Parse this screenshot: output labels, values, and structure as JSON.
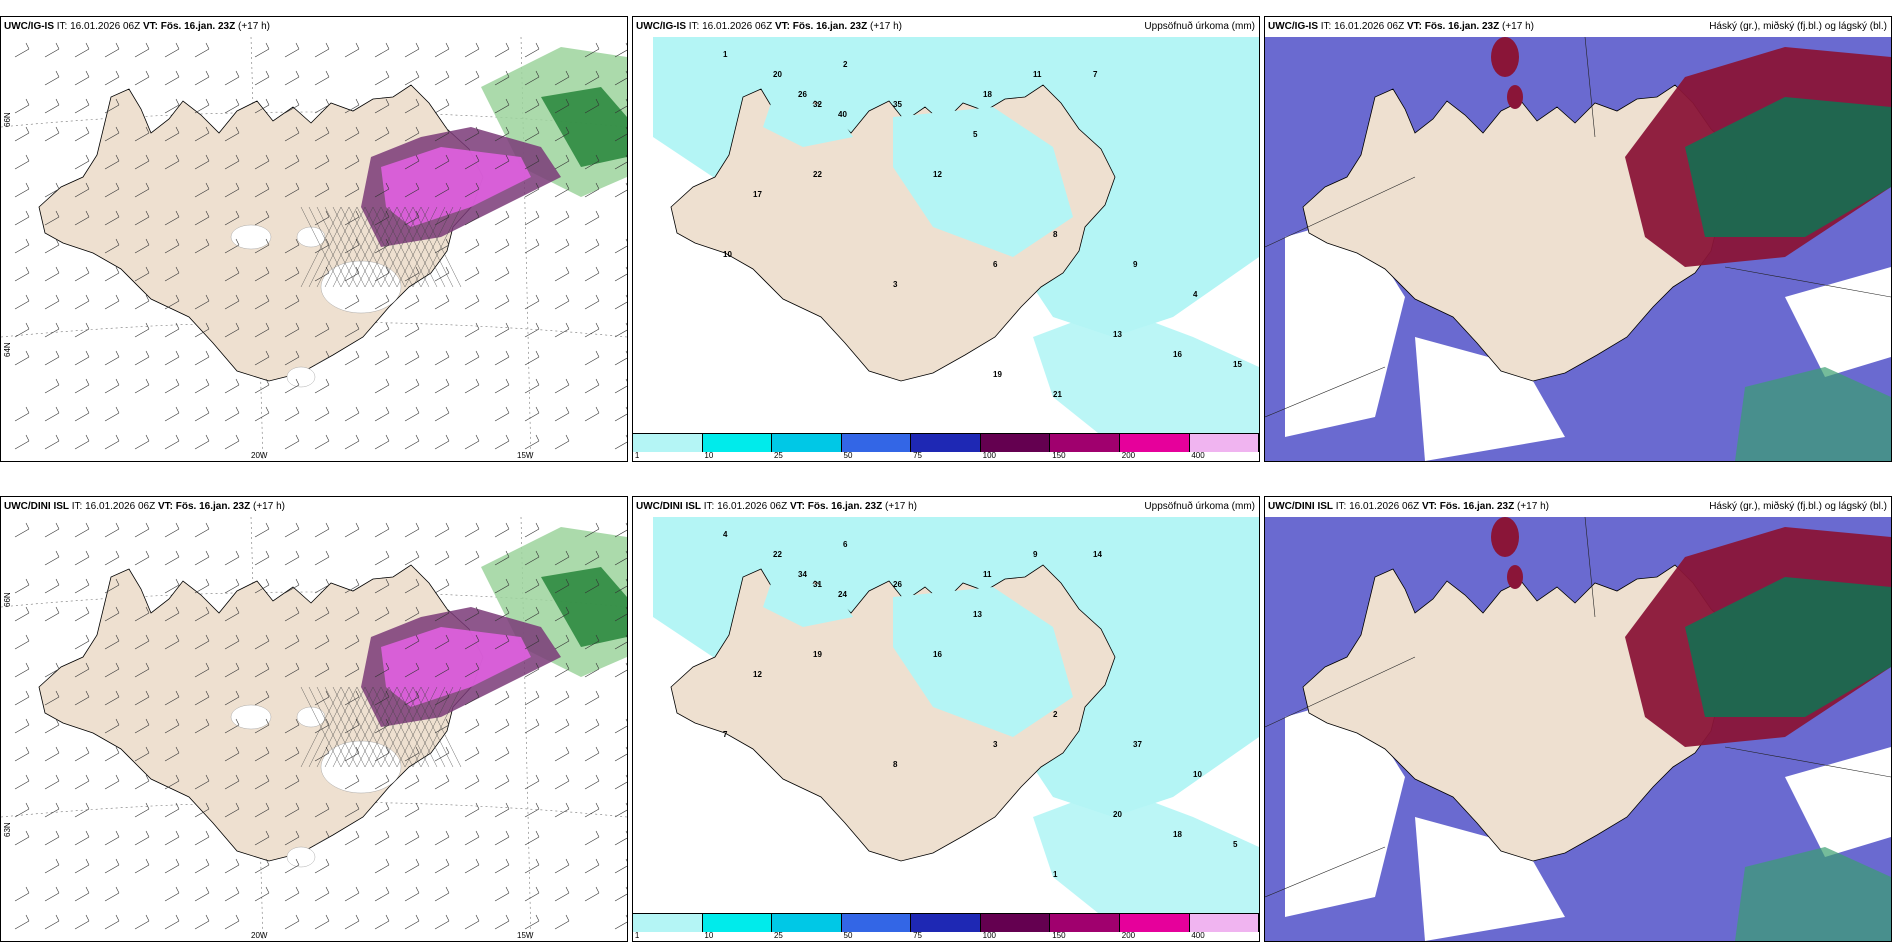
{
  "rows": [
    {
      "model": "UWC/IG-IS",
      "panels": [
        {
          "it_label": "IT:",
          "it_value": "16.01.2026 06Z",
          "vt_label": "VT:",
          "vt_value": "Fös. 16.jan. 23Z",
          "lead": "(+17 h)",
          "right": ""
        },
        {
          "it_label": "IT:",
          "it_value": "16.01.2026 06Z",
          "vt_label": "VT:",
          "vt_value": "Fös. 16.jan. 23Z",
          "lead": "(+17 h)",
          "right": "Uppsöfnuð úrkoma (mm)"
        },
        {
          "it_label": "IT:",
          "it_value": "16.01.2026 06Z",
          "vt_label": "VT:",
          "vt_value": "Fös. 16.jan. 23Z",
          "lead": "(+17 h)",
          "right": "Háský (gr.), miðský (fj.bl.) og lágský (bl.)"
        }
      ]
    },
    {
      "model": "UWC/DINI ISL",
      "panels": [
        {
          "it_label": "IT:",
          "it_value": "16.01.2026 06Z",
          "vt_label": "VT:",
          "vt_value": "Fös. 16.jan. 23Z",
          "lead": "(+17 h)",
          "right": ""
        },
        {
          "it_label": "IT:",
          "it_value": "16.01.2026 06Z",
          "vt_label": "VT:",
          "vt_value": "Fös. 16.jan. 23Z",
          "lead": "(+17 h)",
          "right": "Uppsöfnuð úrkoma (mm)"
        },
        {
          "it_label": "IT:",
          "it_value": "16.01.2026 06Z",
          "vt_label": "VT:",
          "vt_value": "Fös. 16.jan. 23Z",
          "lead": "(+17 h)",
          "right": "Háský (gr.), miðský (fj.bl.) og lágský (bl.)"
        }
      ]
    }
  ],
  "axes": {
    "lat_66": "66N",
    "lat_64": "64N",
    "lat_63": "63N",
    "lon_20": "20W",
    "lon_15": "15W"
  },
  "precip_colorbar": {
    "ticks": [
      "1",
      "10",
      "25",
      "50",
      "75",
      "100",
      "150",
      "200",
      "400"
    ],
    "colors": [
      "#b4f5f5",
      "#00ebeb",
      "#00c8e6",
      "#3366e6",
      "#1e28b4",
      "#640050",
      "#a0006e",
      "#e6009b",
      "#f0b4f0"
    ]
  },
  "precip_values_top": [
    "1",
    "2",
    "20",
    "26",
    "32",
    "40",
    "35",
    "18",
    "11",
    "7",
    "5",
    "12",
    "22",
    "17",
    "10",
    "3",
    "6",
    "8",
    "9",
    "4",
    "13",
    "16",
    "15",
    "21",
    "19"
  ],
  "precip_values_bottom": [
    "4",
    "6",
    "22",
    "34",
    "31",
    "24",
    "26",
    "11",
    "9",
    "14",
    "13",
    "16",
    "19",
    "12",
    "7",
    "8",
    "3",
    "2",
    "37",
    "10",
    "20",
    "18",
    "5",
    "1"
  ],
  "colors": {
    "land": "#eee0d0",
    "snow_pink": "#e060e0",
    "snow_dark": "#7a3a78",
    "precip_light": "#b4f5f5",
    "cloud_high": "#1a6a50",
    "cloud_mid": "#8a1538",
    "cloud_low": "#5050c8"
  }
}
